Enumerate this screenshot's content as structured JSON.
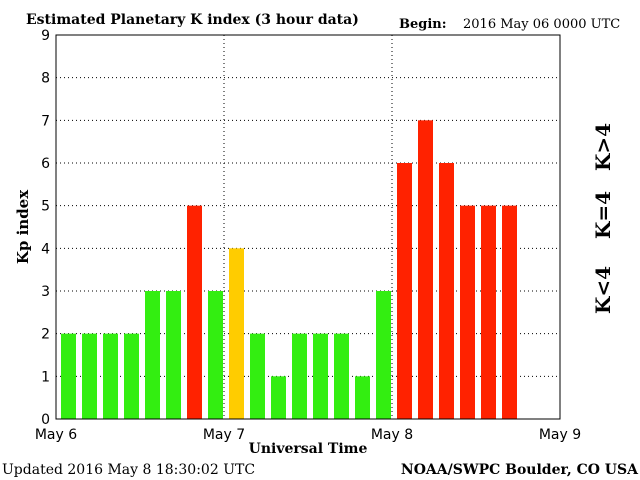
{
  "title": "Estimated Planetary K index (3 hour data)",
  "begin": {
    "label": "Begin:",
    "value": "2016 May 06 0000 UTC"
  },
  "footer": {
    "updated": "Updated 2016 May  8 18:30:02 UTC",
    "credit": "NOAA/SWPC Boulder, CO USA"
  },
  "legend": [
    {
      "text": "K>4",
      "color": "#ff2200"
    },
    {
      "text": "K=4",
      "color": "#ffcc00"
    },
    {
      "text": "K<4",
      "color": "#33ee11"
    }
  ],
  "colors": {
    "low": "#33ee11",
    "moderate": "#ffcc00",
    "high": "#ff2200"
  },
  "chart_data": {
    "type": "bar",
    "title": "Estimated Planetary K index (3 hour data)",
    "xlabel": "Universal Time",
    "ylabel": "Kp index",
    "ylim": [
      0,
      9
    ],
    "yticks": [
      0,
      1,
      2,
      3,
      4,
      5,
      6,
      7,
      8,
      9
    ],
    "xticks": [
      "May 6",
      "May 7",
      "May 8",
      "May 9"
    ],
    "grid": true,
    "values": [
      2,
      2,
      2,
      2,
      3,
      3,
      5,
      3,
      4,
      2,
      1,
      2,
      2,
      2,
      1,
      3,
      6,
      7,
      6,
      5,
      5,
      5
    ]
  }
}
